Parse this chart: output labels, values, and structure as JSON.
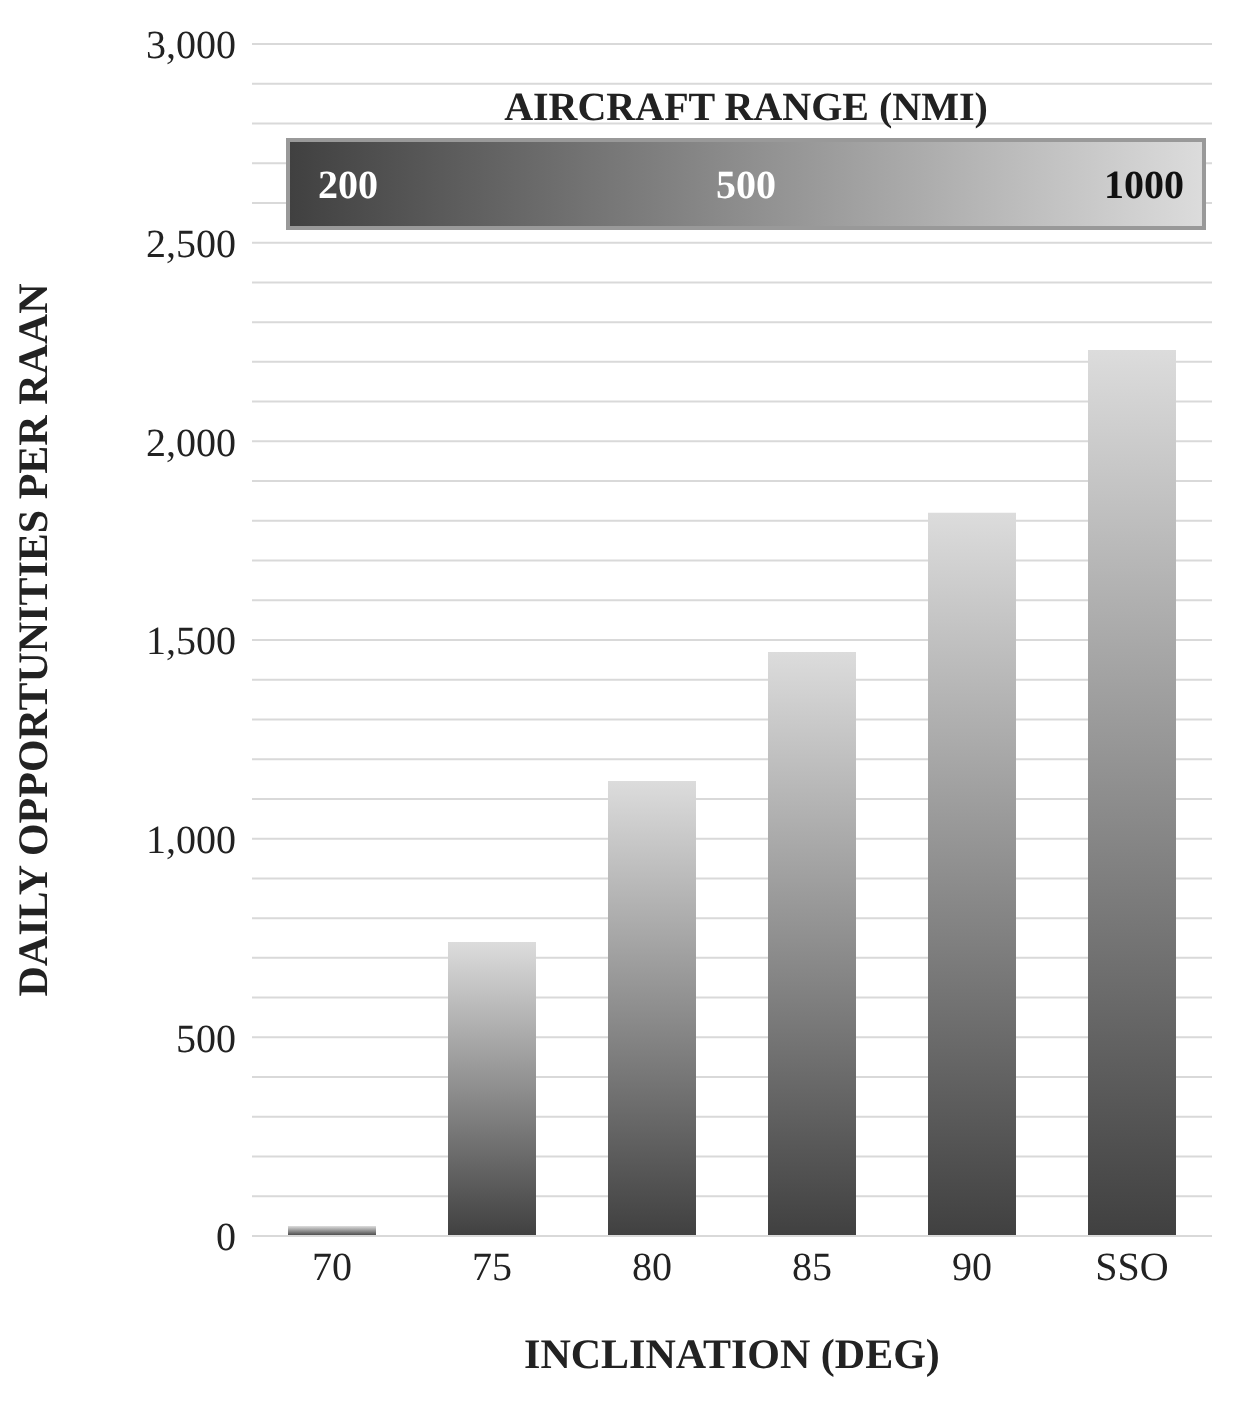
{
  "chart_data": {
    "type": "bar",
    "xlabel": "INCLINATION (DEG)",
    "ylabel": "DAILY  OPPORTUNITIES  PER  RAAN",
    "clabel": "AIRCRAFT RANGE (NMI)",
    "annotations": [
      "200",
      "500",
      "1000"
    ],
    "categories": [
      "70",
      "75",
      "80",
      "85",
      "90",
      "SSO"
    ],
    "values": [
      25,
      740,
      1145,
      1470,
      1820,
      2230
    ],
    "ylim": [
      0,
      3000
    ],
    "yticks": [
      {
        "value": 0,
        "label": "0"
      },
      {
        "value": 100,
        "label": null
      },
      {
        "value": 200,
        "label": null
      },
      {
        "value": 300,
        "label": null
      },
      {
        "value": 400,
        "label": null
      },
      {
        "value": 500,
        "label": "500"
      },
      {
        "value": 600,
        "label": null
      },
      {
        "value": 700,
        "label": null
      },
      {
        "value": 800,
        "label": null
      },
      {
        "value": 900,
        "label": null
      },
      {
        "value": 1000,
        "label": "1,000"
      },
      {
        "value": 1100,
        "label": null
      },
      {
        "value": 1200,
        "label": null
      },
      {
        "value": 1300,
        "label": null
      },
      {
        "value": 1400,
        "label": null
      },
      {
        "value": 1500,
        "label": "1,500"
      },
      {
        "value": 1600,
        "label": null
      },
      {
        "value": 1700,
        "label": null
      },
      {
        "value": 1800,
        "label": null
      },
      {
        "value": 1900,
        "label": null
      },
      {
        "value": 2000,
        "label": "2,000"
      },
      {
        "value": 2100,
        "label": null
      },
      {
        "value": 2200,
        "label": null
      },
      {
        "value": 2300,
        "label": null
      },
      {
        "value": 2400,
        "label": null
      },
      {
        "value": 2500,
        "label": "2,500"
      },
      {
        "value": 2600,
        "label": null
      },
      {
        "value": 2700,
        "label": null
      },
      {
        "value": 2800,
        "label": null
      },
      {
        "value": 2900,
        "label": null
      },
      {
        "value": 3000,
        "label": "3,000"
      }
    ],
    "grid": "y"
  }
}
